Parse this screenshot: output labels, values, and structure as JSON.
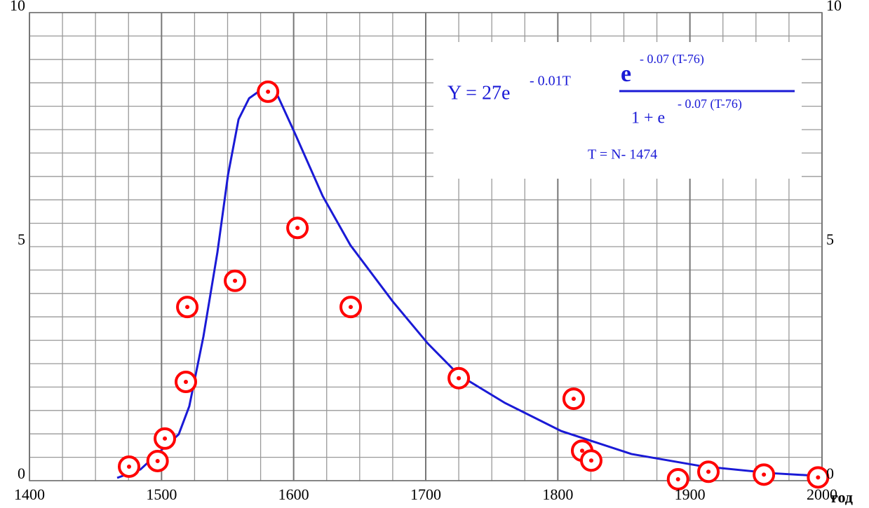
{
  "chart_data": {
    "type": "scatter",
    "x_axis_label": "год",
    "xlim": [
      1400,
      2000
    ],
    "xticks": [
      1400,
      1500,
      1600,
      1700,
      1800,
      1900,
      2000
    ],
    "ylim": [
      0,
      10
    ],
    "yticks": [
      0,
      5,
      10
    ],
    "y2lim": [
      0,
      10
    ],
    "y2ticks": [
      0,
      5,
      10
    ],
    "xgrid": [
      1400,
      1425,
      1450,
      1475,
      1500,
      1525,
      1550,
      1575,
      1600,
      1625,
      1650,
      1675,
      1700,
      1725,
      1750,
      1775,
      1800,
      1825,
      1850,
      1875,
      1900,
      1925,
      1950,
      1975,
      2000
    ],
    "ygrid": [
      0,
      0.5,
      1,
      1.5,
      2,
      2.5,
      3,
      3.5,
      4,
      4.5,
      5,
      5.5,
      6,
      6.5,
      7,
      7.5,
      8,
      8.5,
      9,
      9.5,
      10
    ],
    "grid": true,
    "series": [
      {
        "type": "scatter",
        "color": "#ff0000",
        "x": [
          1475.4,
          1497,
          1502.5,
          1518.4,
          1519.5,
          1555.6,
          1580.6,
          1602.9,
          1643.2,
          1725,
          1812,
          1818.4,
          1825.3,
          1891,
          1914,
          1956,
          1997
        ],
        "values": [
          0.3,
          0.42,
          0.9,
          2.11,
          3.71,
          4.27,
          8.31,
          5.4,
          3.71,
          2.19,
          1.75,
          0.64,
          0.43,
          0.03,
          0.19,
          0.13,
          0.07
        ]
      },
      {
        "type": "line",
        "color": "#1a1ad6",
        "x": [
          1466.4,
          1484,
          1513,
          1521,
          1531.7,
          1542.3,
          1550.3,
          1558.3,
          1566.3,
          1576.8,
          1587.5,
          1600.8,
          1622,
          1643,
          1675,
          1701.6,
          1725,
          1760,
          1802.6,
          1855.7,
          1908.8,
          1961.9,
          1999
        ],
        "values": [
          0.06,
          0.24,
          0.99,
          1.59,
          3.08,
          4.88,
          6.53,
          7.72,
          8.17,
          8.38,
          8.25,
          7.43,
          6.08,
          5.03,
          3.83,
          2.93,
          2.26,
          1.66,
          1.06,
          0.57,
          0.31,
          0.16,
          0.1
        ]
      }
    ],
    "formula": {
      "lhs": "Y = 27e",
      "exp1": "- 0.01T",
      "num": "e",
      "num_exp": "- 0.07 (T-76)",
      "den": "1 + e",
      "den_exp": "- 0.07 (T-76)",
      "note": "T = N- 1474"
    }
  }
}
